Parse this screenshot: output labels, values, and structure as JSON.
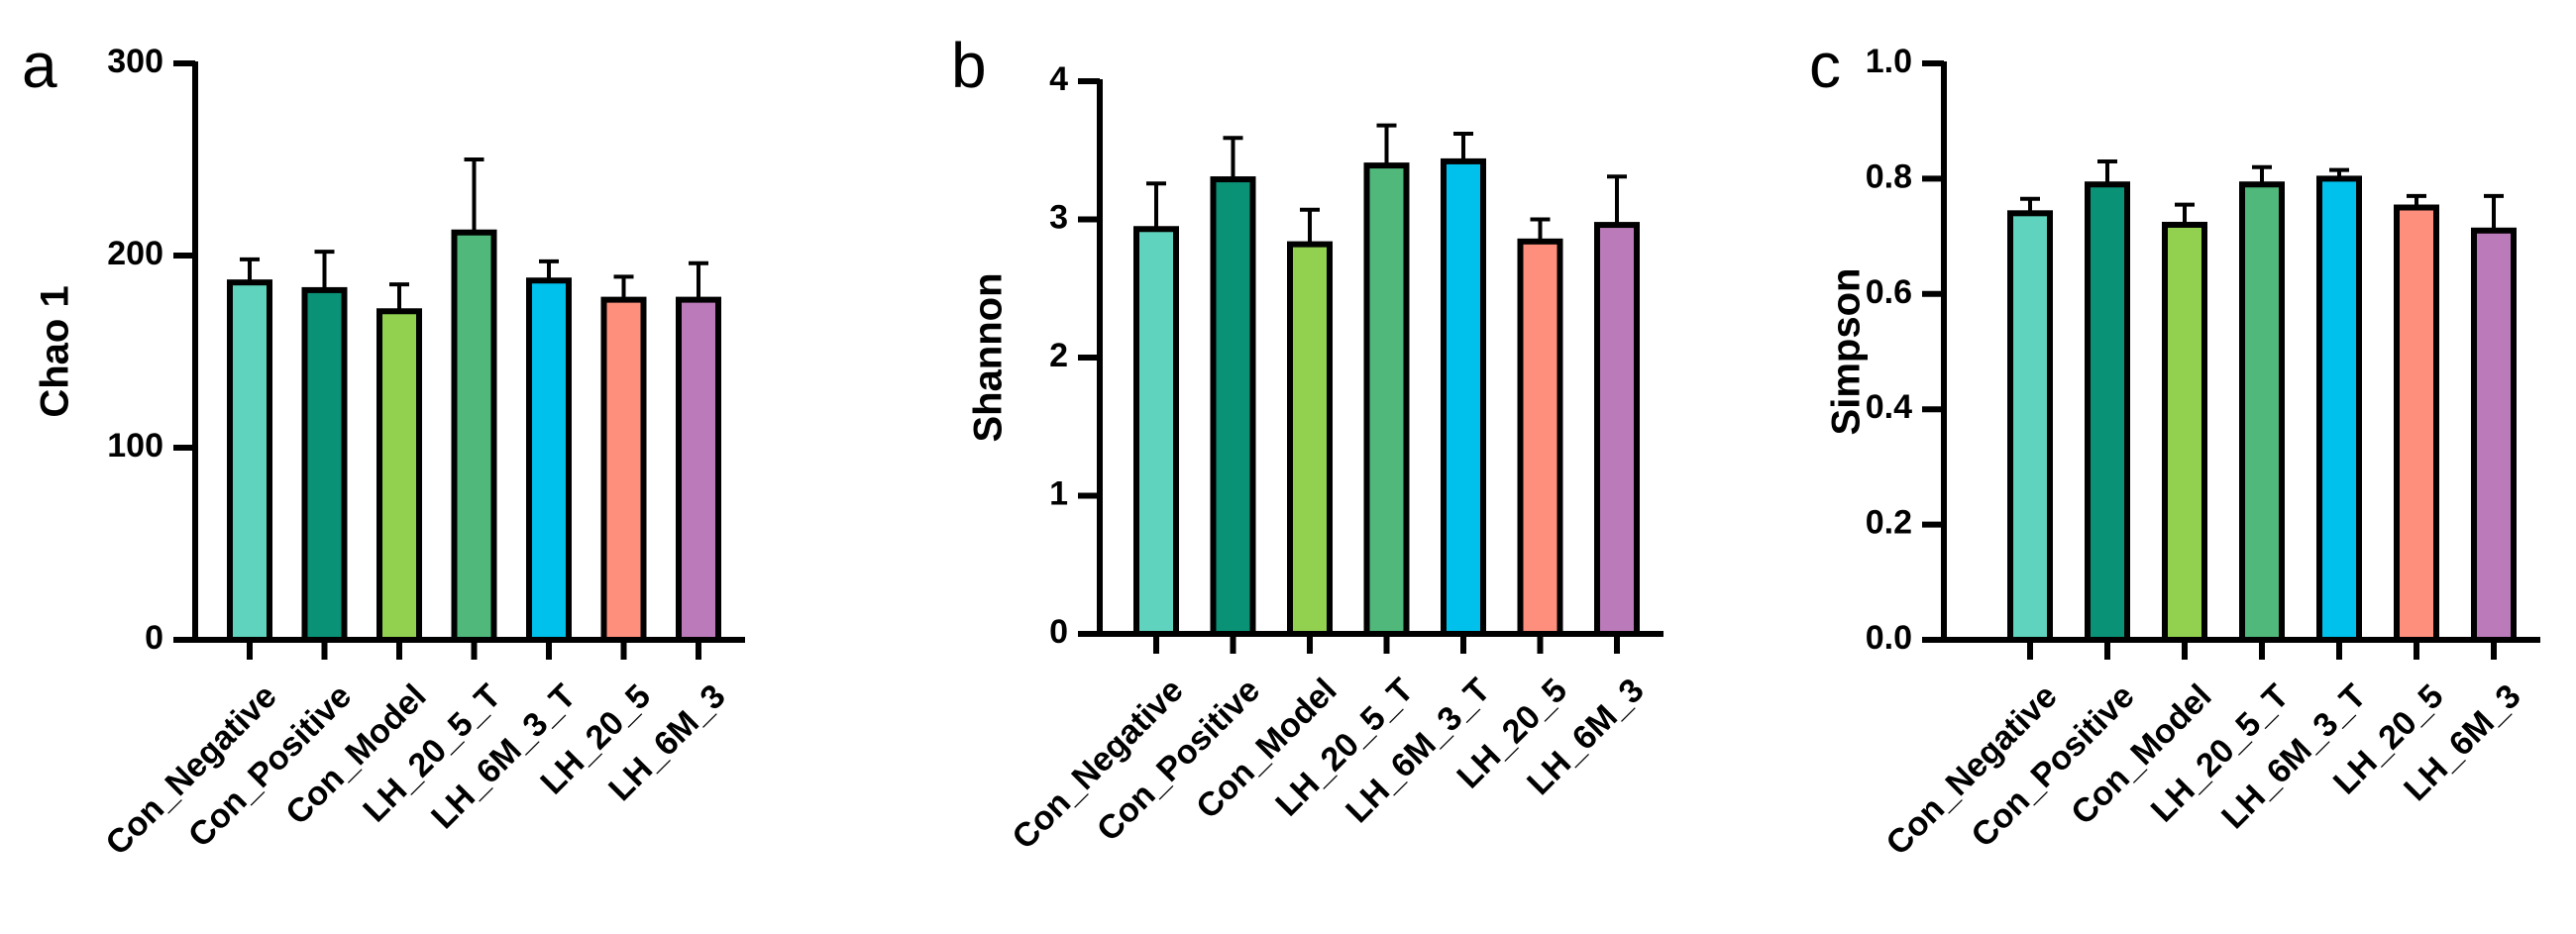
{
  "chart_data": [
    {
      "panel": "a",
      "type": "bar",
      "title": "",
      "xlabel": "",
      "ylabel": "Chao 1",
      "ylim": [
        0,
        300
      ],
      "yticks": [
        0,
        100,
        200,
        300
      ],
      "ytick_labels": [
        "0",
        "100",
        "200",
        "300"
      ],
      "categories": [
        "Con_Negative",
        "Con_Positive",
        "Con_Model",
        "LH_20_5_T",
        "LH_6M_3_T",
        "LH_20_5",
        "LH_6M_3"
      ],
      "values": [
        186,
        182,
        171,
        212,
        187,
        177,
        177
      ],
      "errors": [
        12,
        20,
        14,
        38,
        10,
        12,
        19
      ],
      "colors": [
        "#5fd3bd",
        "#0a9277",
        "#92d050",
        "#4fb87a",
        "#00c0ec",
        "#ff8f7d",
        "#bb7ab9"
      ],
      "grid": false
    },
    {
      "panel": "b",
      "type": "bar",
      "title": "",
      "xlabel": "",
      "ylabel": "Shannon",
      "ylim": [
        0,
        4
      ],
      "yticks": [
        0,
        1,
        2,
        3,
        4
      ],
      "ytick_labels": [
        "0",
        "1",
        "2",
        "3",
        "4"
      ],
      "categories": [
        "Con_Negative",
        "Con_Positive",
        "Con_Model",
        "LH_20_5_T",
        "LH_6M_3_T",
        "LH_20_5",
        "LH_6M_3"
      ],
      "values": [
        2.93,
        3.29,
        2.82,
        3.39,
        3.42,
        2.84,
        2.96
      ],
      "errors": [
        0.33,
        0.3,
        0.25,
        0.29,
        0.2,
        0.16,
        0.35
      ],
      "colors": [
        "#5fd3bd",
        "#0a9277",
        "#92d050",
        "#4fb87a",
        "#00c0ec",
        "#ff8f7d",
        "#bb7ab9"
      ],
      "grid": false
    },
    {
      "panel": "c",
      "type": "bar",
      "title": "",
      "xlabel": "",
      "ylabel": "Simpson",
      "ylim": [
        0,
        1.0
      ],
      "yticks": [
        0,
        0.2,
        0.4,
        0.6,
        0.8,
        1.0
      ],
      "ytick_labels": [
        "0.0",
        "0.2",
        "0.4",
        "0.6",
        "0.8",
        "1.0"
      ],
      "categories": [
        "Con_Negative",
        "Con_Positive",
        "Con_Model",
        "LH_20_5_T",
        "LH_6M_3_T",
        "LH_20_5",
        "LH_6M_3"
      ],
      "values": [
        0.74,
        0.79,
        0.72,
        0.79,
        0.8,
        0.75,
        0.71
      ],
      "errors": [
        0.025,
        0.04,
        0.035,
        0.03,
        0.015,
        0.02,
        0.06
      ],
      "colors": [
        "#5fd3bd",
        "#0a9277",
        "#92d050",
        "#4fb87a",
        "#00c0ec",
        "#ff8f7d",
        "#bb7ab9"
      ],
      "grid": false
    }
  ]
}
